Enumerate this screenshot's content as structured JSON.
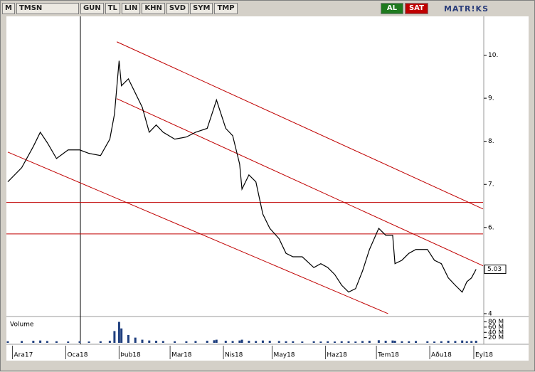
{
  "toolbar": {
    "symbol_prefix": "M",
    "symbol": "TMSN",
    "buttons": [
      "GUN",
      "TL",
      "LIN",
      "KHN",
      "SVD",
      "SYM",
      "TMP"
    ],
    "buy": "AL",
    "sell": "SAT",
    "brand": "MATR!KS"
  },
  "chart_data": [
    {
      "type": "line",
      "color": "#000000",
      "x": [
        0,
        6,
        11,
        14,
        17,
        21,
        26,
        31,
        35,
        40,
        44,
        46,
        48,
        49,
        52,
        55,
        58,
        61,
        64,
        67,
        72,
        77,
        81,
        86,
        89,
        90,
        94,
        97,
        100,
        101,
        104,
        107,
        110,
        113,
        117,
        120,
        123,
        127,
        132,
        135,
        138,
        141,
        144,
        147,
        150,
        153,
        156,
        160,
        163,
        166,
        167,
        170,
        173,
        176,
        181,
        184,
        187,
        190,
        193,
        196,
        198,
        200,
        202
      ],
      "values": [
        7.06,
        7.39,
        7.88,
        8.21,
        7.97,
        7.6,
        7.8,
        7.8,
        7.72,
        7.67,
        8.05,
        8.63,
        9.87,
        9.29,
        9.45,
        9.12,
        8.79,
        8.21,
        8.38,
        8.21,
        8.05,
        8.1,
        8.21,
        8.3,
        8.79,
        8.96,
        8.3,
        8.13,
        7.47,
        6.89,
        7.22,
        7.06,
        6.31,
        5.98,
        5.74,
        5.4,
        5.32,
        5.32,
        5.07,
        5.16,
        5.07,
        4.91,
        4.66,
        4.5,
        4.58,
        4.99,
        5.49,
        5.98,
        5.82,
        5.82,
        5.16,
        5.24,
        5.4,
        5.49,
        5.49,
        5.24,
        5.16,
        4.83,
        4.66,
        4.5,
        4.74,
        4.83,
        5.03
      ],
      "xlim": [
        0,
        205
      ],
      "ylim": [
        3.95,
        10.9
      ],
      "yticks": [
        4,
        {
          "value": 6,
          "label": "6."
        },
        {
          "value": 7,
          "label": "7."
        },
        {
          "value": 8,
          "label": "8."
        },
        {
          "value": 9,
          "label": "9."
        },
        {
          "value": 10,
          "label": "10."
        }
      ],
      "last_price": 5.03,
      "xticks": [
        {
          "value": 2,
          "label": "Ara17"
        },
        {
          "value": 25,
          "label": "Oca18"
        },
        {
          "value": 48,
          "label": "Þub18"
        },
        {
          "value": 70,
          "label": "Mar18"
        },
        {
          "value": 93,
          "label": "Nis18"
        },
        {
          "value": 114,
          "label": "May18"
        },
        {
          "value": 137,
          "label": "Haz18"
        },
        {
          "value": 159,
          "label": "Tem18"
        },
        {
          "value": 182,
          "label": "Aðu18"
        },
        {
          "value": 201,
          "label": "Eyl18"
        }
      ],
      "line_color": "#c00000",
      "hlines": [
        6.58,
        5.85
      ],
      "trend_lines": [
        {
          "x": [
            47,
            205
          ],
          "y": [
            10.31,
            6.43
          ]
        },
        {
          "x": [
            47,
            205
          ],
          "y": [
            8.99,
            5.11
          ]
        },
        {
          "x": [
            0,
            164
          ],
          "y": [
            7.75,
            4.0
          ]
        }
      ]
    },
    {
      "type": "bar",
      "title": "Volume",
      "color": "#1f3f7f",
      "x": [
        0,
        6,
        11,
        14,
        17,
        21,
        26,
        31,
        35,
        40,
        44,
        46,
        48,
        49,
        52,
        55,
        58,
        61,
        64,
        67,
        72,
        77,
        81,
        86,
        89,
        90,
        94,
        97,
        100,
        101,
        104,
        107,
        110,
        113,
        117,
        120,
        123,
        127,
        132,
        135,
        138,
        141,
        144,
        147,
        150,
        153,
        156,
        160,
        163,
        166,
        167,
        170,
        173,
        176,
        181,
        184,
        187,
        190,
        193,
        196,
        198,
        200,
        202
      ],
      "values": [
        6,
        7,
        8,
        9,
        7,
        6,
        5,
        6,
        5,
        6,
        8,
        45,
        80,
        55,
        30,
        20,
        12,
        9,
        8,
        7,
        6,
        6,
        7,
        8,
        10,
        12,
        8,
        7,
        9,
        12,
        8,
        7,
        9,
        8,
        7,
        6,
        6,
        5,
        6,
        5,
        6,
        5,
        6,
        6,
        5,
        7,
        8,
        10,
        8,
        9,
        8,
        6,
        6,
        7,
        6,
        5,
        6,
        8,
        7,
        9,
        6,
        7,
        8
      ],
      "xlim": [
        0,
        205
      ],
      "ylim": [
        0,
        95
      ],
      "yticks": [
        {
          "value": 20,
          "label": "20 M"
        },
        {
          "value": 40,
          "label": "40 M"
        },
        {
          "value": 60,
          "label": "60 M"
        },
        {
          "value": 80,
          "label": "80 M"
        }
      ]
    }
  ]
}
